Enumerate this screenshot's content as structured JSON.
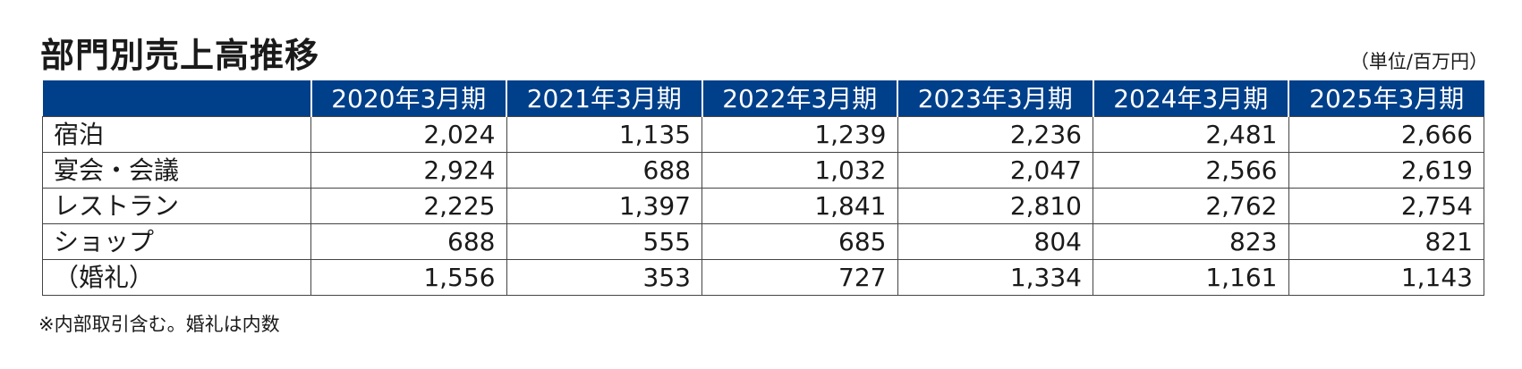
{
  "title": "部門別売上高推移",
  "unit": "（単位/百万円）",
  "table": {
    "corner": "",
    "columns": [
      "2020年3月期",
      "2021年3月期",
      "2022年3月期",
      "2023年3月期",
      "2024年3月期",
      "2025年3月期"
    ],
    "rows": [
      {
        "label": "宿泊",
        "values": [
          "2,024",
          "1,135",
          "1,239",
          "2,236",
          "2,481",
          "2,666"
        ]
      },
      {
        "label": "宴会・会議",
        "values": [
          "2,924",
          "688",
          "1,032",
          "2,047",
          "2,566",
          "2,619"
        ]
      },
      {
        "label": "レストラン",
        "values": [
          "2,225",
          "1,397",
          "1,841",
          "2,810",
          "2,762",
          "2,754"
        ]
      },
      {
        "label": "ショップ",
        "values": [
          "688",
          "555",
          "685",
          "804",
          "823",
          "821"
        ]
      },
      {
        "label": "（婚礼）",
        "values": [
          "1,556",
          "353",
          "727",
          "1,334",
          "1,161",
          "1,143"
        ]
      }
    ]
  },
  "note": "※内部取引含む。婚礼は内数",
  "colors": {
    "header_bg": "#003f8a",
    "header_text": "#ffffff",
    "border": "#444444"
  }
}
